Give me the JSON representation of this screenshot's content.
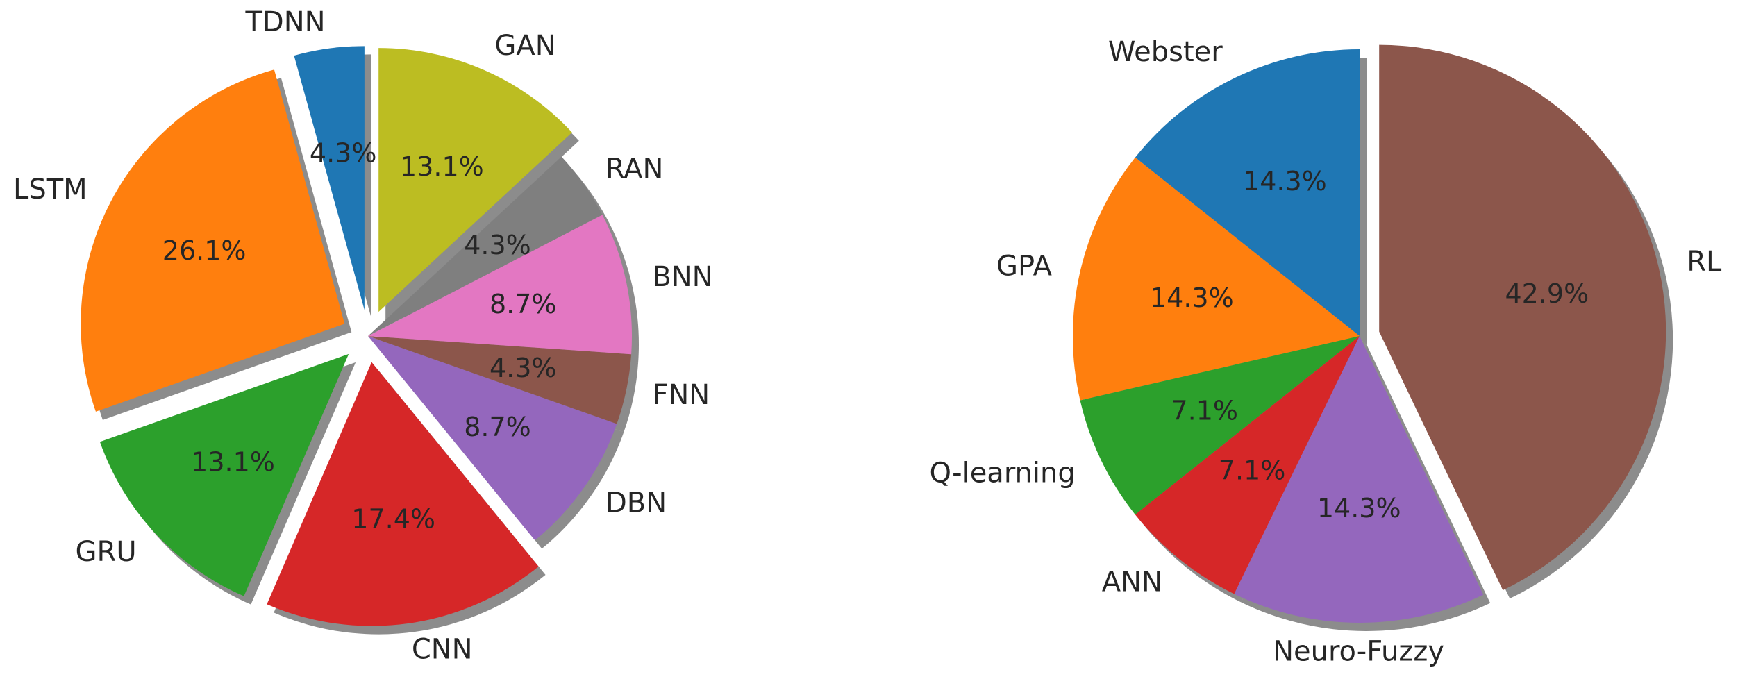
{
  "chart_data": [
    {
      "type": "pie",
      "slices": [
        {
          "label": "TDNN",
          "percent_label": "4.3%",
          "value": 4.3,
          "color": "#1f77b4",
          "exploded": true
        },
        {
          "label": "LSTM",
          "percent_label": "26.1%",
          "value": 26.1,
          "color": "#ff7f0e",
          "exploded": true
        },
        {
          "label": "GRU",
          "percent_label": "13.1%",
          "value": 13.1,
          "color": "#2ca02c",
          "exploded": true
        },
        {
          "label": "CNN",
          "percent_label": "17.4%",
          "value": 17.4,
          "color": "#d62728",
          "exploded": true
        },
        {
          "label": "DBN",
          "percent_label": "8.7%",
          "value": 8.7,
          "color": "#9467bd",
          "exploded": false
        },
        {
          "label": "FNN",
          "percent_label": "4.3%",
          "value": 4.3,
          "color": "#8c564b",
          "exploded": false
        },
        {
          "label": "BNN",
          "percent_label": "8.7%",
          "value": 8.7,
          "color": "#e377c2",
          "exploded": false
        },
        {
          "label": "RAN",
          "percent_label": "4.3%",
          "value": 4.3,
          "color": "#7f7f7f",
          "exploded": false
        },
        {
          "label": "GAN",
          "percent_label": "13.1%",
          "value": 13.1,
          "color": "#bcbd22",
          "exploded": true
        }
      ],
      "start_angle_deg": 90,
      "shadow": true
    },
    {
      "type": "pie",
      "slices": [
        {
          "label": "Webster",
          "percent_label": "14.3%",
          "value": 14.3,
          "color": "#1f77b4",
          "exploded": false
        },
        {
          "label": "GPA",
          "percent_label": "14.3%",
          "value": 14.3,
          "color": "#ff7f0e",
          "exploded": false
        },
        {
          "label": "Q-learning",
          "percent_label": "7.1%",
          "value": 7.1,
          "color": "#2ca02c",
          "exploded": false
        },
        {
          "label": "ANN",
          "percent_label": "7.1%",
          "value": 7.1,
          "color": "#d62728",
          "exploded": false
        },
        {
          "label": "Neuro-Fuzzy",
          "percent_label": "14.3%",
          "value": 14.3,
          "color": "#9467bd",
          "exploded": false
        },
        {
          "label": "RL",
          "percent_label": "42.9%",
          "value": 42.9,
          "color": "#8c564b",
          "exploded": true
        }
      ],
      "start_angle_deg": 90,
      "shadow": true
    }
  ]
}
